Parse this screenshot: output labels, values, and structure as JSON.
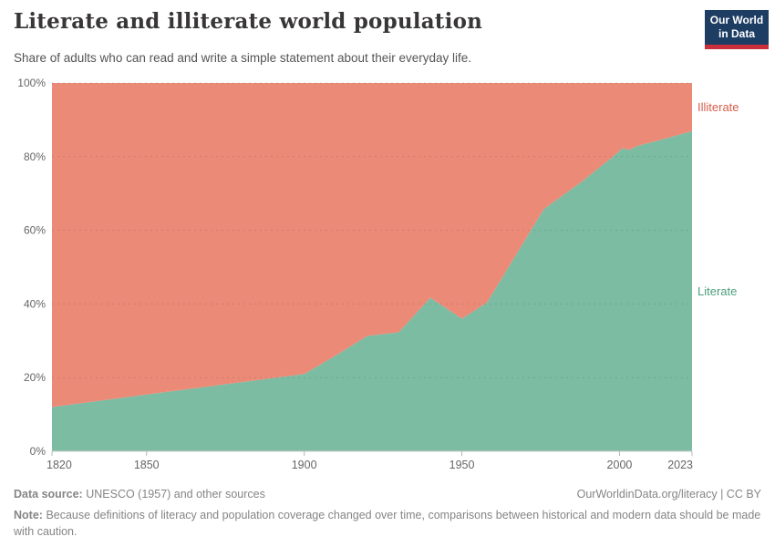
{
  "header": {
    "title": "Literate and illiterate world population",
    "subtitle": "Share of adults who can read and write a simple statement about their everyday life.",
    "logo_line1": "Our World",
    "logo_line2": "in Data"
  },
  "chart_data": {
    "type": "area",
    "stacked": true,
    "title": "Literate and illiterate world population",
    "xlabel": "",
    "ylabel": "",
    "xlim": [
      1820,
      2023
    ],
    "ylim": [
      0,
      100
    ],
    "x_ticks": [
      1820,
      1850,
      1900,
      1950,
      2000,
      2023
    ],
    "y_ticks": [
      0,
      20,
      40,
      60,
      80,
      100
    ],
    "y_tick_suffix": "%",
    "grid": "horizontal-dashed",
    "legend_position": "labels-right-edge",
    "x": [
      1820,
      1850,
      1900,
      1910,
      1920,
      1930,
      1940,
      1950,
      1958,
      1976,
      1988,
      1995,
      1998,
      2001,
      2003,
      2006,
      2012,
      2017,
      2023
    ],
    "series": [
      {
        "name": "Literate",
        "fill": "#7CBCA2",
        "label_color": "#4C9D7D",
        "values": [
          12,
          15.4,
          21,
          26,
          31.3,
          32.3,
          41.7,
          36,
          40.4,
          65.8,
          73.2,
          78,
          80,
          82.3,
          81.8,
          83,
          84.3,
          85.5,
          86.9
        ]
      },
      {
        "name": "Illiterate",
        "fill": "#EB8A77",
        "label_color": "#D2604C",
        "values": [
          88,
          84.6,
          79,
          74,
          68.7,
          67.7,
          58.3,
          64,
          59.6,
          34.2,
          26.8,
          22,
          20,
          17.7,
          18.2,
          17,
          15.7,
          14.5,
          13.1
        ]
      }
    ],
    "axis_color": "#666666",
    "baseline_color": "#cccccc"
  },
  "footer": {
    "source_label": "Data source:",
    "source_value": "UNESCO (1957) and other sources",
    "link": "OurWorldinData.org/literacy | CC BY",
    "note_label": "Note:",
    "note_value": "Because definitions of literacy and population coverage changed over time, comparisons between historical and modern data should be made with caution."
  }
}
